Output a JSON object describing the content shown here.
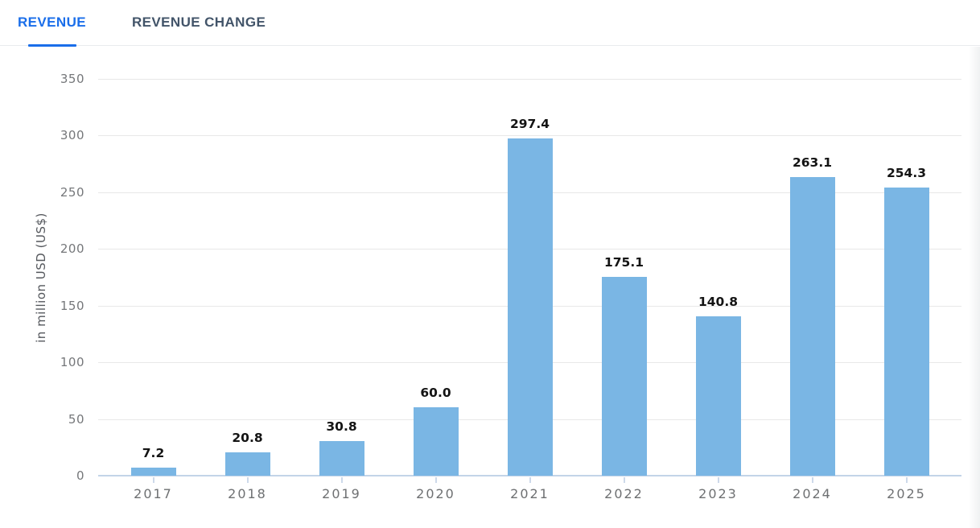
{
  "tabs": [
    {
      "label": "REVENUE",
      "active": true
    },
    {
      "label": "REVENUE CHANGE",
      "active": false
    }
  ],
  "colors": {
    "bar": "#7ab6e4",
    "active_tab": "#1a6eea",
    "inactive_tab": "#425469",
    "gridline": "#e8e8e8",
    "axis_line": "#c3d4e8",
    "tick_label": "#75777a",
    "value_label": "#141414"
  },
  "chart_data": {
    "type": "bar",
    "title": "",
    "categories": [
      "2017",
      "2018",
      "2019",
      "2020",
      "2021",
      "2022",
      "2023",
      "2024",
      "2025"
    ],
    "values": [
      7.2,
      20.8,
      30.8,
      60.0,
      297.4,
      175.1,
      140.8,
      263.1,
      254.3
    ],
    "value_labels": [
      "7.2",
      "20.8",
      "30.8",
      "60.0",
      "297.4",
      "175.1",
      "140.8",
      "263.1",
      "254.3"
    ],
    "xlabel": "",
    "ylabel": "in million USD (US$)",
    "ylim": [
      0,
      350
    ],
    "ytick_step": 50,
    "yticks": [
      0,
      50,
      100,
      150,
      200,
      250,
      300,
      350
    ],
    "grid": "horizontal",
    "legend": "none",
    "bar_color": "#7ab6e4"
  }
}
